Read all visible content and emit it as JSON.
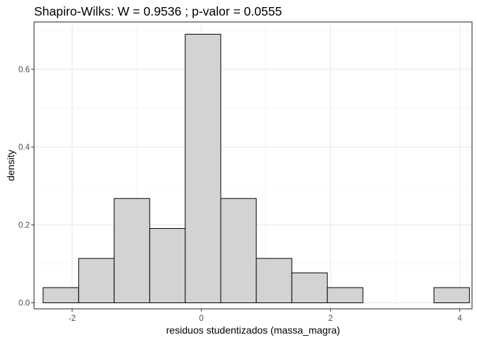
{
  "chart_data": {
    "type": "histogram",
    "title": "Shapiro-Wilks: W =  0.9536 ; p-valor =  0.0555",
    "xlabel": "residuos studentizados (massa_magra)",
    "ylabel": "density",
    "xlim": [
      -2.59,
      4.19
    ],
    "ylim": [
      -0.0155,
      0.7215
    ],
    "x_ticks": [
      -2,
      0,
      2,
      4
    ],
    "x_tick_labels": [
      "-2",
      "0",
      "2",
      "4"
    ],
    "y_ticks": [
      0.0,
      0.2,
      0.4,
      0.6
    ],
    "y_tick_labels": [
      "0.0",
      "0.2",
      "0.4",
      "0.6"
    ],
    "grid": true,
    "bar_fill": "#d3d3d3",
    "bar_stroke": "#000000",
    "bins": [
      {
        "x0": -2.45,
        "x1": -1.9,
        "density": 0.039
      },
      {
        "x0": -1.9,
        "x1": -1.35,
        "density": 0.114
      },
      {
        "x0": -1.35,
        "x1": -0.8,
        "density": 0.268
      },
      {
        "x0": -0.8,
        "x1": -0.25,
        "density": 0.191
      },
      {
        "x0": -0.25,
        "x1": 0.3,
        "density": 0.69
      },
      {
        "x0": 0.3,
        "x1": 0.85,
        "density": 0.268
      },
      {
        "x0": 0.85,
        "x1": 1.4,
        "density": 0.114
      },
      {
        "x0": 1.4,
        "x1": 1.95,
        "density": 0.077
      },
      {
        "x0": 1.95,
        "x1": 2.5,
        "density": 0.039
      },
      {
        "x0": 2.5,
        "x1": 3.05,
        "density": 0.0
      },
      {
        "x0": 3.05,
        "x1": 3.6,
        "density": 0.0
      },
      {
        "x0": 3.6,
        "x1": 4.15,
        "density": 0.039
      }
    ]
  }
}
